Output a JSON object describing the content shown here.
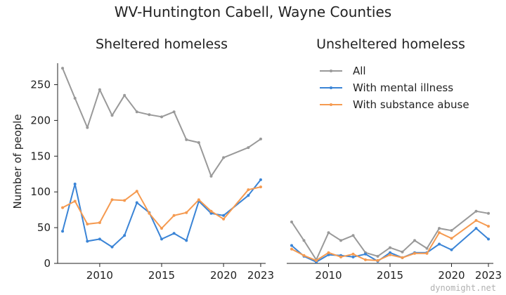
{
  "figure": {
    "title": "WV-Huntington Cabell, Wayne Counties",
    "watermark": "dynomight.net",
    "ylabel": "Number of people"
  },
  "legend": {
    "items": [
      "All",
      "With mental illness",
      "With substance abuse"
    ]
  },
  "chart_data": [
    {
      "type": "line",
      "title": "Sheltered homeless",
      "xlabel": "",
      "ylabel": "Number of people",
      "xlim": [
        2006.6,
        2023.4
      ],
      "ylim": [
        0,
        280
      ],
      "xticks": [
        2010,
        2015,
        2020,
        2023
      ],
      "yticks": [
        0,
        50,
        100,
        150,
        200,
        250
      ],
      "series": [
        {
          "name": "All",
          "color": "#999999",
          "x": [
            2007,
            2008,
            2009,
            2010,
            2011,
            2012,
            2013,
            2014,
            2015,
            2016,
            2017,
            2018,
            2019,
            2020,
            2022,
            2023
          ],
          "y": [
            273,
            231,
            190,
            243,
            207,
            235,
            212,
            208,
            205,
            212,
            173,
            169,
            122,
            148,
            162,
            174
          ]
        },
        {
          "name": "With mental illness",
          "color": "#3a84d6",
          "x": [
            2007,
            2008,
            2009,
            2010,
            2011,
            2012,
            2013,
            2014,
            2015,
            2016,
            2017,
            2018,
            2019,
            2020,
            2022,
            2023
          ],
          "y": [
            45,
            111,
            31,
            34,
            23,
            39,
            85,
            71,
            34,
            42,
            32,
            87,
            70,
            67,
            95,
            117
          ]
        },
        {
          "name": "With substance abuse",
          "color": "#f59a50",
          "x": [
            2007,
            2008,
            2009,
            2010,
            2011,
            2012,
            2013,
            2014,
            2015,
            2016,
            2017,
            2018,
            2019,
            2020,
            2022,
            2023
          ],
          "y": [
            78,
            87,
            55,
            57,
            89,
            88,
            101,
            70,
            49,
            67,
            71,
            89,
            73,
            62,
            103,
            107
          ]
        }
      ]
    },
    {
      "type": "line",
      "title": "Unsheltered homeless",
      "xlabel": "",
      "ylabel": "",
      "xlim": [
        2006.6,
        2023.4
      ],
      "ylim": [
        0,
        280
      ],
      "xticks": [
        2010,
        2015,
        2020,
        2023
      ],
      "yticks": [],
      "series": [
        {
          "name": "All",
          "color": "#999999",
          "x": [
            2007,
            2008,
            2009,
            2010,
            2011,
            2012,
            2013,
            2014,
            2015,
            2016,
            2017,
            2018,
            2019,
            2020,
            2022,
            2023
          ],
          "y": [
            58,
            32,
            5,
            43,
            32,
            39,
            15,
            10,
            22,
            16,
            32,
            21,
            49,
            46,
            73,
            70
          ]
        },
        {
          "name": "With mental illness",
          "color": "#3a84d6",
          "x": [
            2007,
            2008,
            2009,
            2010,
            2011,
            2012,
            2013,
            2014,
            2015,
            2016,
            2017,
            2018,
            2019,
            2020,
            2022,
            2023
          ],
          "y": [
            25,
            10,
            2,
            12,
            11,
            9,
            13,
            3,
            15,
            8,
            15,
            15,
            27,
            19,
            49,
            34
          ]
        },
        {
          "name": "With substance abuse",
          "color": "#f59a50",
          "x": [
            2007,
            2008,
            2009,
            2010,
            2011,
            2012,
            2013,
            2014,
            2015,
            2016,
            2017,
            2018,
            2019,
            2020,
            2022,
            2023
          ],
          "y": [
            20,
            11,
            4,
            15,
            9,
            13,
            5,
            4,
            12,
            8,
            14,
            14,
            43,
            35,
            60,
            52
          ]
        }
      ]
    }
  ]
}
